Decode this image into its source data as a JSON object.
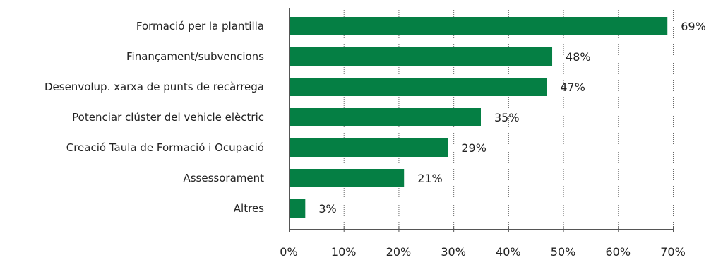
{
  "chart_data": {
    "type": "bar",
    "orientation": "horizontal",
    "categories": [
      "Formació per la plantilla",
      "Finançament/subvencions",
      "Desenvolup. xarxa de punts de recàrrega",
      "Potenciar clúster del vehicle elèctric",
      "Creació Taula de Formació i Ocupació",
      "Assessorament",
      "Altres"
    ],
    "values": [
      69,
      48,
      47,
      35,
      29,
      21,
      3
    ],
    "value_labels": [
      "69%",
      "48%",
      "47%",
      "35%",
      "29%",
      "21%",
      "3%"
    ],
    "x_ticks": [
      0,
      10,
      20,
      30,
      40,
      50,
      60,
      70
    ],
    "x_tick_labels": [
      "0%",
      "10%",
      "20%",
      "30%",
      "40%",
      "50%",
      "60%",
      "70%"
    ],
    "xlim": [
      0,
      70
    ],
    "grid": "vertical dotted",
    "bar_color": "#057f44"
  }
}
